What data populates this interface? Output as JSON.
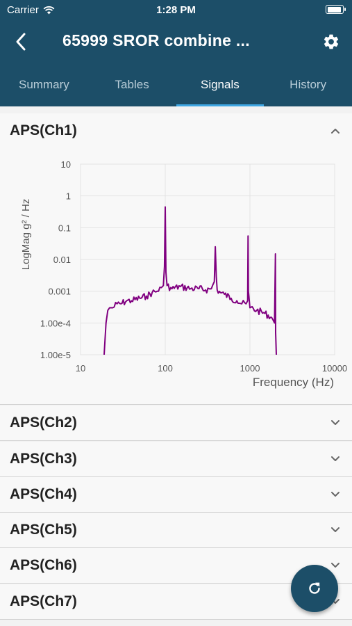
{
  "status_bar": {
    "carrier": "Carrier",
    "time": "1:28 PM",
    "battery_level": 0.95
  },
  "header": {
    "title": "65999 SROR combine ..."
  },
  "tabs": [
    {
      "label": "Summary"
    },
    {
      "label": "Tables"
    },
    {
      "label": "Signals",
      "active": true
    },
    {
      "label": "History"
    }
  ],
  "sections": [
    {
      "label": "APS(Ch1)",
      "expanded": true
    },
    {
      "label": "APS(Ch2)",
      "expanded": false
    },
    {
      "label": "APS(Ch3)",
      "expanded": false
    },
    {
      "label": "APS(Ch4)",
      "expanded": false
    },
    {
      "label": "APS(Ch5)",
      "expanded": false
    },
    {
      "label": "APS(Ch6)",
      "expanded": false
    },
    {
      "label": "APS(Ch7)",
      "expanded": false
    }
  ],
  "icons": {
    "back": "chevron-left-icon",
    "settings": "gear-icon",
    "expand": "chevron-down-icon",
    "collapse": "chevron-up-icon",
    "refresh": "refresh-icon"
  },
  "colors": {
    "header": "#1c4e68",
    "tab_indicator": "#3fa7e3",
    "series": "#800080"
  },
  "chart_data": {
    "type": "line",
    "xlabel": "Frequency (Hz)",
    "ylabel": "LogMag g² / Hz",
    "x_scale": "log",
    "y_scale": "log",
    "xlim": [
      10,
      10000
    ],
    "ylim": [
      1e-05,
      10
    ],
    "x_ticks": [
      "10",
      "100",
      "1000",
      "10000"
    ],
    "y_ticks": [
      "10",
      "1",
      "0.1",
      "0.01",
      "0.001",
      "1.00e-4",
      "1.00e-5"
    ],
    "grid": true,
    "series": [
      {
        "color": "#800080",
        "x": [
          19,
          20,
          21,
          22,
          24,
          27,
          30,
          35,
          40,
          50,
          60,
          70,
          80,
          90,
          95,
          98,
          100,
          102,
          105,
          120,
          150,
          200,
          250,
          300,
          350,
          380,
          390,
          400,
          410,
          450,
          500,
          600,
          700,
          800,
          900,
          940,
          950,
          960,
          1000,
          1200,
          1500,
          1800,
          1950,
          2000,
          2010,
          2050
        ],
        "y": [
          1e-05,
          0.0001,
          0.00025,
          0.0003,
          0.0003,
          0.0004,
          0.0004,
          0.0005,
          0.0005,
          0.0006,
          0.0007,
          0.0009,
          0.001,
          0.0013,
          0.0015,
          0.006,
          0.45,
          0.004,
          0.0015,
          0.0012,
          0.0014,
          0.0012,
          0.0012,
          0.0011,
          0.0012,
          0.002,
          0.025,
          0.003,
          0.0011,
          0.0009,
          0.0008,
          0.0006,
          0.0005,
          0.0004,
          0.0004,
          0.0005,
          0.055,
          0.001,
          0.0003,
          0.00025,
          0.0002,
          0.00015,
          0.0001,
          0.015,
          5e-05,
          1e-05
        ]
      }
    ]
  }
}
